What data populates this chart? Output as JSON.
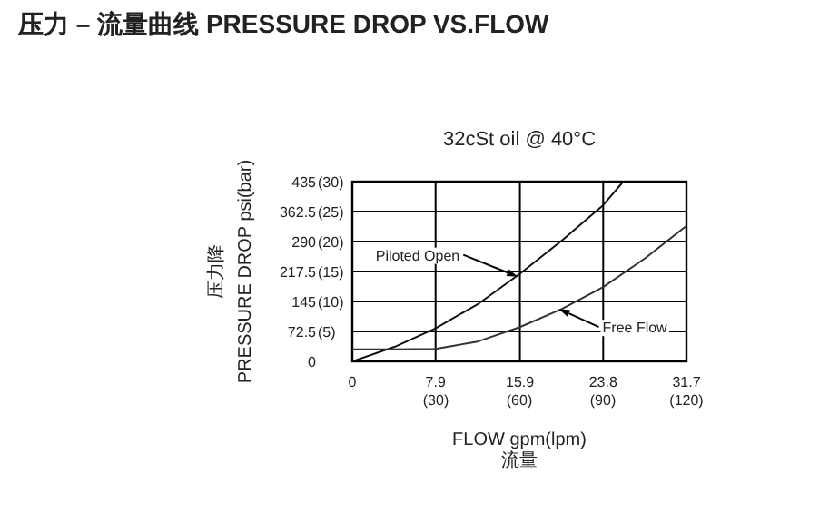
{
  "chart_data": {
    "type": "line",
    "title": "压力 – 流量曲线 PRESSURE DROP VS.FLOW",
    "subtitle": "32cSt oil @ 40°C",
    "xlabel": "FLOW  gpm(lpm)\n流量",
    "ylabel": "压力降\nPRESSURE DROP  psi(bar)",
    "xlim": [
      0,
      31.7
    ],
    "ylim": [
      0,
      435
    ],
    "xticks": [
      0,
      7.9,
      15.9,
      23.8,
      31.7
    ],
    "x2lim": [
      0,
      120
    ],
    "x2ticks": [
      {
        "value": 30,
        "label": "(30)"
      },
      {
        "value": 60,
        "label": "(60)"
      },
      {
        "value": 90,
        "label": "(90)"
      },
      {
        "value": 120,
        "label": "(120)"
      }
    ],
    "yticks": [
      0,
      72.5,
      145,
      217.5,
      290,
      362.5,
      435
    ],
    "y2lim": [
      0,
      30
    ],
    "y2ticks": [
      {
        "value": 5,
        "label": "(5)"
      },
      {
        "value": 10,
        "label": "(10)"
      },
      {
        "value": 15,
        "label": "(15)"
      },
      {
        "value": 20,
        "label": "(20)"
      },
      {
        "value": 25,
        "label": "(25)"
      },
      {
        "value": 30,
        "label": "(30)"
      }
    ],
    "grid": true,
    "line_style": "solid",
    "series": [
      {
        "color": "#111111",
        "x": [
          0,
          4,
          7.9,
          12,
          15.9,
          20,
          23.8,
          25.7
        ],
        "values": [
          0,
          35,
          80,
          140,
          212,
          295,
          378,
          435
        ]
      },
      {
        "color": "#333333",
        "x": [
          0,
          4,
          7.9,
          11.9,
          15.9,
          19.9,
          23.8,
          27.8,
          31.7
        ],
        "values": [
          29,
          29,
          30,
          48,
          83,
          127,
          180,
          250,
          328
        ]
      }
    ],
    "annotations": [
      {
        "text": "Piloted Open",
        "x": 15.7,
        "y": 205
      },
      {
        "text": "Free Flow",
        "x": 19.6,
        "y": 127
      }
    ]
  }
}
